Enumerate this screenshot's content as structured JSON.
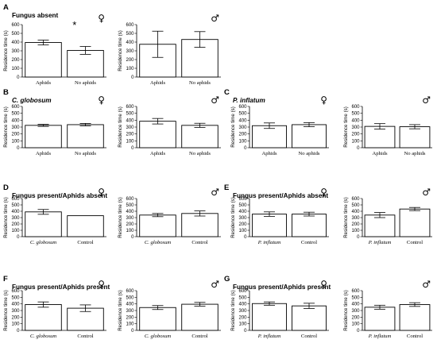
{
  "chart_data": [
    {
      "id": "A1",
      "type": "bar",
      "panel_label": "A",
      "title": "Fungus absent",
      "title_italic": false,
      "sex": "♀",
      "ylabel": "Residence time (s)",
      "ylim": [
        0,
        600
      ],
      "yticks": [
        0,
        100,
        200,
        300,
        400,
        500,
        600
      ],
      "categories": [
        "Aphids",
        "No aphids"
      ],
      "categories_italic": [
        false,
        false
      ],
      "values": [
        395,
        305
      ],
      "errors": [
        28,
        45
      ],
      "bar_fill": [
        "#ffffff",
        "#ffffff"
      ],
      "annotations": [
        "*"
      ]
    },
    {
      "id": "A2",
      "type": "bar",
      "panel_label": "",
      "title": "",
      "title_italic": false,
      "sex": "♂",
      "ylabel": "Residence time (s)",
      "ylim": [
        0,
        600
      ],
      "yticks": [
        0,
        100,
        200,
        300,
        400,
        500,
        600
      ],
      "categories": [
        "Aphids",
        "No aphids"
      ],
      "categories_italic": [
        false,
        false
      ],
      "values": [
        375,
        430
      ],
      "errors": [
        150,
        90
      ],
      "bar_fill": [
        "#ffffff",
        "#ffffff"
      ],
      "annotations": []
    },
    {
      "id": "B1",
      "type": "bar",
      "panel_label": "B",
      "title": "C. globosum",
      "title_italic": true,
      "sex": "♀",
      "ylabel": "Residence time (s)",
      "ylim": [
        0,
        600
      ],
      "yticks": [
        0,
        100,
        200,
        300,
        400,
        500,
        600
      ],
      "categories": [
        "Aphids",
        "No aphids"
      ],
      "categories_italic": [
        false,
        false
      ],
      "values": [
        325,
        335
      ],
      "errors": [
        15,
        18
      ],
      "bar_fill": [
        "#ffffff",
        "#ffffff"
      ],
      "annotations": []
    },
    {
      "id": "B2",
      "type": "bar",
      "panel_label": "",
      "title": "",
      "title_italic": false,
      "sex": "♂",
      "ylabel": "Residence time (s)",
      "ylim": [
        0,
        600
      ],
      "yticks": [
        0,
        100,
        200,
        300,
        400,
        500,
        600
      ],
      "categories": [
        "Aphids",
        "No aphids"
      ],
      "categories_italic": [
        false,
        false
      ],
      "values": [
        385,
        325
      ],
      "errors": [
        40,
        30
      ],
      "bar_fill": [
        "#ffffff",
        "#ffffff"
      ],
      "annotations": []
    },
    {
      "id": "C1",
      "type": "bar",
      "panel_label": "C",
      "title": "P. inflatum",
      "title_italic": true,
      "sex": "♀",
      "ylabel": "Residence time (s)",
      "ylim": [
        0,
        600
      ],
      "yticks": [
        0,
        100,
        200,
        300,
        400,
        500,
        600
      ],
      "categories": [
        "Aphids",
        "No aphids"
      ],
      "categories_italic": [
        false,
        false
      ],
      "values": [
        320,
        335
      ],
      "errors": [
        40,
        30
      ],
      "bar_fill": [
        "#ffffff",
        "#ffffff"
      ],
      "annotations": []
    },
    {
      "id": "C2",
      "type": "bar",
      "panel_label": "",
      "title": "",
      "title_italic": false,
      "sex": "♂",
      "ylabel": "Residence time (s)",
      "ylim": [
        0,
        600
      ],
      "yticks": [
        0,
        100,
        200,
        300,
        400,
        500,
        600
      ],
      "categories": [
        "Aphids",
        "No aphids"
      ],
      "categories_italic": [
        false,
        false
      ],
      "values": [
        310,
        305
      ],
      "errors": [
        40,
        30
      ],
      "bar_fill": [
        "#ffffff",
        "#ffffff"
      ],
      "annotations": []
    },
    {
      "id": "D1",
      "type": "bar",
      "panel_label": "D",
      "title": "Fungus present/Aphids absent",
      "title_italic": false,
      "sex": "♀",
      "ylabel": "Residence time (s)",
      "ylim": [
        0,
        600
      ],
      "yticks": [
        0,
        100,
        200,
        300,
        400,
        500,
        600
      ],
      "categories": [
        "C. globosum",
        "Control"
      ],
      "categories_italic": [
        true,
        false
      ],
      "values": [
        390,
        330
      ],
      "errors": [
        38,
        0
      ],
      "bar_fill": [
        "#ffffff",
        "#ffffff"
      ],
      "annotations": []
    },
    {
      "id": "D2",
      "type": "bar",
      "panel_label": "",
      "title": "",
      "title_italic": false,
      "sex": "♂",
      "ylabel": "Residence time (s)",
      "ylim": [
        0,
        600
      ],
      "yticks": [
        0,
        100,
        200,
        300,
        400,
        500,
        600
      ],
      "categories": [
        "C. globosum",
        "Control"
      ],
      "categories_italic": [
        true,
        false
      ],
      "values": [
        340,
        365
      ],
      "errors": [
        25,
        40
      ],
      "bar_fill": [
        "#ffffff",
        "#ffffff"
      ],
      "annotations": []
    },
    {
      "id": "E1",
      "type": "bar",
      "panel_label": "E",
      "title": "Fungus present/Aphids absent",
      "title_italic": false,
      "sex": "♀",
      "ylabel": "Residence time (s)",
      "ylim": [
        0,
        600
      ],
      "yticks": [
        0,
        100,
        200,
        300,
        400,
        500,
        600
      ],
      "categories": [
        "P. inflatum",
        "Control"
      ],
      "categories_italic": [
        true,
        false
      ],
      "values": [
        355,
        355
      ],
      "errors": [
        35,
        30
      ],
      "bar_fill": [
        "#ffffff",
        "#ffffff"
      ],
      "annotations": []
    },
    {
      "id": "E2",
      "type": "bar",
      "panel_label": "",
      "title": "",
      "title_italic": false,
      "sex": "♂",
      "ylabel": "Residence time (s)",
      "ylim": [
        0,
        600
      ],
      "yticks": [
        0,
        100,
        200,
        300,
        400,
        500,
        600
      ],
      "categories": [
        "P. inflatum",
        "Control"
      ],
      "categories_italic": [
        true,
        false
      ],
      "values": [
        340,
        435
      ],
      "errors": [
        40,
        25
      ],
      "bar_fill": [
        "#ffffff",
        "#ffffff"
      ],
      "annotations": []
    },
    {
      "id": "F1",
      "type": "bar",
      "panel_label": "F",
      "title": "Fungus present/Aphids present",
      "title_italic": false,
      "sex": "♀",
      "ylabel": "Residence time (s)",
      "ylim": [
        0,
        600
      ],
      "yticks": [
        0,
        100,
        200,
        300,
        400,
        500,
        600
      ],
      "categories": [
        "C. globosum",
        "Control"
      ],
      "categories_italic": [
        true,
        false
      ],
      "values": [
        390,
        335
      ],
      "errors": [
        40,
        50
      ],
      "bar_fill": [
        "#ffffff",
        "#ffffff"
      ],
      "annotations": []
    },
    {
      "id": "F2",
      "type": "bar",
      "panel_label": "",
      "title": "",
      "title_italic": false,
      "sex": "♂",
      "ylabel": "Residence time (s)",
      "ylim": [
        0,
        600
      ],
      "yticks": [
        0,
        100,
        200,
        300,
        400,
        500,
        600
      ],
      "categories": [
        "C. globosum",
        "Control"
      ],
      "categories_italic": [
        true,
        false
      ],
      "values": [
        345,
        395
      ],
      "errors": [
        30,
        28
      ],
      "bar_fill": [
        "#ffffff",
        "#ffffff"
      ],
      "annotations": []
    },
    {
      "id": "G1",
      "type": "bar",
      "panel_label": "G",
      "title": "Fungus present/Aphids present",
      "title_italic": false,
      "sex": "♀",
      "ylabel": "Residence time (s)",
      "ylim": [
        0,
        600
      ],
      "yticks": [
        0,
        100,
        200,
        300,
        400,
        500,
        600
      ],
      "categories": [
        "P. inflatum",
        "Control"
      ],
      "categories_italic": [
        true,
        false
      ],
      "values": [
        405,
        370
      ],
      "errors": [
        25,
        40
      ],
      "bar_fill": [
        "#ffffff",
        "#ffffff"
      ],
      "annotations": []
    },
    {
      "id": "G2",
      "type": "bar",
      "panel_label": "",
      "title": "",
      "title_italic": false,
      "sex": "♂",
      "ylabel": "Residence time (s)",
      "ylim": [
        0,
        600
      ],
      "yticks": [
        0,
        100,
        200,
        300,
        400,
        500,
        600
      ],
      "categories": [
        "P. inflatum",
        "Control"
      ],
      "categories_italic": [
        true,
        false
      ],
      "values": [
        350,
        390
      ],
      "errors": [
        30,
        28
      ],
      "bar_fill": [
        "#ffffff",
        "#ffffff"
      ],
      "annotations": []
    }
  ]
}
